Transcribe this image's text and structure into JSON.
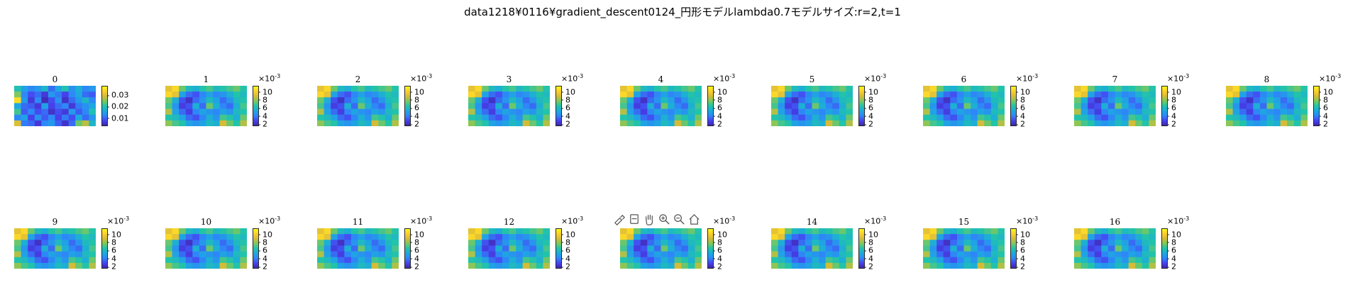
{
  "title": "data1218¥0116¥gradient_descent0124_円形モデルlambda0.7モデルサイズ:r=2,t=1",
  "colormap": [
    "#3e26a8",
    "#4743f0",
    "#2e87f7",
    "#1caadf",
    "#22c3aa",
    "#7cc85e",
    "#d4bc38",
    "#fcce2e",
    "#f9fb15"
  ],
  "toolbar": {
    "icons": [
      "brush-icon",
      "data-tip-icon",
      "pan-hand-icon",
      "zoom-in-icon",
      "zoom-out-icon",
      "home-icon"
    ]
  },
  "chart_data": [
    {
      "type": "heatmap",
      "title": "0",
      "colorbar": {
        "ticks": [
          "0.01",
          "0.02",
          "0.03"
        ],
        "multiplier": "",
        "range": [
          0.003,
          0.038
        ]
      },
      "values": [
        [
          0.02,
          0.015,
          0.012,
          0.014,
          0.018,
          0.01,
          0.016,
          0.02,
          0.013,
          0.017,
          0.012,
          0.014
        ],
        [
          0.025,
          0.012,
          0.008,
          0.01,
          0.006,
          0.014,
          0.011,
          0.007,
          0.012,
          0.016,
          0.01,
          0.009
        ],
        [
          0.035,
          0.014,
          0.006,
          0.012,
          0.004,
          0.008,
          0.013,
          0.005,
          0.01,
          0.014,
          0.018,
          0.012
        ],
        [
          0.016,
          0.01,
          0.009,
          0.006,
          0.015,
          0.007,
          0.01,
          0.012,
          0.006,
          0.011,
          0.013,
          0.016
        ],
        [
          0.022,
          0.009,
          0.012,
          0.008,
          0.01,
          0.005,
          0.008,
          0.006,
          0.014,
          0.009,
          0.012,
          0.02
        ],
        [
          0.012,
          0.015,
          0.007,
          0.013,
          0.009,
          0.012,
          0.007,
          0.011,
          0.008,
          0.016,
          0.01,
          0.014
        ],
        [
          0.03,
          0.011,
          0.01,
          0.006,
          0.012,
          0.014,
          0.009,
          0.005,
          0.01,
          0.024,
          0.028,
          0.018
        ]
      ]
    },
    {
      "type": "heatmap",
      "title": "1",
      "colorbar": {
        "ticks": [
          "2",
          "4",
          "6",
          "8",
          "10"
        ],
        "multiplier": "×10",
        "exponent": "-3",
        "range": [
          1.5,
          11.5
        ]
      },
      "values": "shared_pattern"
    },
    {
      "type": "heatmap",
      "title": "2",
      "colorbar": {
        "ticks": [
          "2",
          "4",
          "6",
          "8",
          "10"
        ],
        "multiplier": "×10",
        "exponent": "-3",
        "range": [
          1.5,
          11.5
        ]
      },
      "values": "shared_pattern"
    },
    {
      "type": "heatmap",
      "title": "3",
      "colorbar": {
        "ticks": [
          "2",
          "4",
          "6",
          "8",
          "10"
        ],
        "multiplier": "×10",
        "exponent": "-3",
        "range": [
          1.5,
          11.5
        ]
      },
      "values": "shared_pattern"
    },
    {
      "type": "heatmap",
      "title": "4",
      "colorbar": {
        "ticks": [
          "2",
          "4",
          "6",
          "8",
          "10"
        ],
        "multiplier": "×10",
        "exponent": "-3",
        "range": [
          1.5,
          11.5
        ]
      },
      "values": "shared_pattern"
    },
    {
      "type": "heatmap",
      "title": "5",
      "colorbar": {
        "ticks": [
          "2",
          "4",
          "6",
          "8",
          "10"
        ],
        "multiplier": "×10",
        "exponent": "-3",
        "range": [
          1.5,
          11.5
        ]
      },
      "values": "shared_pattern"
    },
    {
      "type": "heatmap",
      "title": "6",
      "colorbar": {
        "ticks": [
          "2",
          "4",
          "6",
          "8",
          "10"
        ],
        "multiplier": "×10",
        "exponent": "-3",
        "range": [
          1.5,
          11.5
        ]
      },
      "values": "shared_pattern"
    },
    {
      "type": "heatmap",
      "title": "7",
      "colorbar": {
        "ticks": [
          "2",
          "4",
          "6",
          "8",
          "10"
        ],
        "multiplier": "×10",
        "exponent": "-3",
        "range": [
          1.5,
          11.5
        ]
      },
      "values": "shared_pattern"
    },
    {
      "type": "heatmap",
      "title": "8",
      "colorbar": {
        "ticks": [
          "2",
          "4",
          "6",
          "8",
          "10"
        ],
        "multiplier": "×10",
        "exponent": "-3",
        "range": [
          1.5,
          11.5
        ]
      },
      "values": "shared_pattern"
    },
    {
      "type": "heatmap",
      "title": "9",
      "colorbar": {
        "ticks": [
          "2",
          "4",
          "6",
          "8",
          "10"
        ],
        "multiplier": "×10",
        "exponent": "-3",
        "range": [
          1.5,
          11.5
        ]
      },
      "values": "shared_pattern"
    },
    {
      "type": "heatmap",
      "title": "10",
      "colorbar": {
        "ticks": [
          "2",
          "4",
          "6",
          "8",
          "10"
        ],
        "multiplier": "×10",
        "exponent": "-3",
        "range": [
          1.5,
          11.5
        ]
      },
      "values": "shared_pattern"
    },
    {
      "type": "heatmap",
      "title": "11",
      "colorbar": {
        "ticks": [
          "2",
          "4",
          "6",
          "8",
          "10"
        ],
        "multiplier": "×10",
        "exponent": "-3",
        "range": [
          1.5,
          11.5
        ]
      },
      "values": "shared_pattern"
    },
    {
      "type": "heatmap",
      "title": "12",
      "colorbar": {
        "ticks": [
          "2",
          "4",
          "6",
          "8",
          "10"
        ],
        "multiplier": "×10",
        "exponent": "-3",
        "range": [
          1.5,
          11.5
        ]
      },
      "values": "shared_pattern"
    },
    {
      "type": "heatmap",
      "title": "",
      "colorbar": {
        "ticks": [
          "2",
          "4",
          "6",
          "8",
          "10"
        ],
        "multiplier": "×10",
        "exponent": "-3",
        "range": [
          1.5,
          11.5
        ]
      },
      "values": "shared_pattern"
    },
    {
      "type": "heatmap",
      "title": "14",
      "colorbar": {
        "ticks": [
          "2",
          "4",
          "6",
          "8",
          "10"
        ],
        "multiplier": "×10",
        "exponent": "-3",
        "range": [
          1.5,
          11.5
        ]
      },
      "values": "shared_pattern"
    },
    {
      "type": "heatmap",
      "title": "15",
      "colorbar": {
        "ticks": [
          "2",
          "4",
          "6",
          "8",
          "10"
        ],
        "multiplier": "×10",
        "exponent": "-3",
        "range": [
          1.5,
          11.5
        ]
      },
      "values": "shared_pattern"
    },
    {
      "type": "heatmap",
      "title": "16",
      "colorbar": {
        "ticks": [
          "2",
          "4",
          "6",
          "8",
          "10"
        ],
        "multiplier": "×10",
        "exponent": "-3",
        "range": [
          1.5,
          11.5
        ]
      },
      "values": "shared_pattern"
    }
  ],
  "shared_pattern": [
    [
      9.5,
      10.5,
      7.5,
      6.0,
      5.5,
      6.5,
      7.0,
      6.0,
      6.5,
      7.0,
      7.5,
      6.5
    ],
    [
      10.5,
      9.5,
      5.0,
      3.5,
      3.0,
      4.0,
      5.0,
      4.0,
      4.5,
      5.5,
      6.5,
      6.0
    ],
    [
      7.5,
      5.5,
      3.0,
      2.0,
      3.5,
      4.5,
      6.0,
      5.0,
      3.5,
      4.5,
      6.0,
      6.5
    ],
    [
      7.0,
      4.5,
      2.5,
      3.0,
      5.5,
      3.5,
      7.5,
      5.5,
      4.0,
      3.5,
      5.5,
      7.0
    ],
    [
      8.5,
      5.0,
      3.5,
      2.5,
      4.0,
      5.0,
      4.5,
      4.0,
      5.0,
      4.5,
      6.0,
      6.5
    ],
    [
      6.5,
      6.0,
      5.0,
      3.5,
      3.0,
      4.0,
      5.5,
      4.5,
      7.0,
      6.5,
      5.5,
      7.5
    ],
    [
      8.0,
      7.0,
      6.5,
      5.0,
      4.5,
      5.0,
      6.0,
      5.5,
      9.0,
      7.5,
      6.5,
      8.5
    ]
  ]
}
